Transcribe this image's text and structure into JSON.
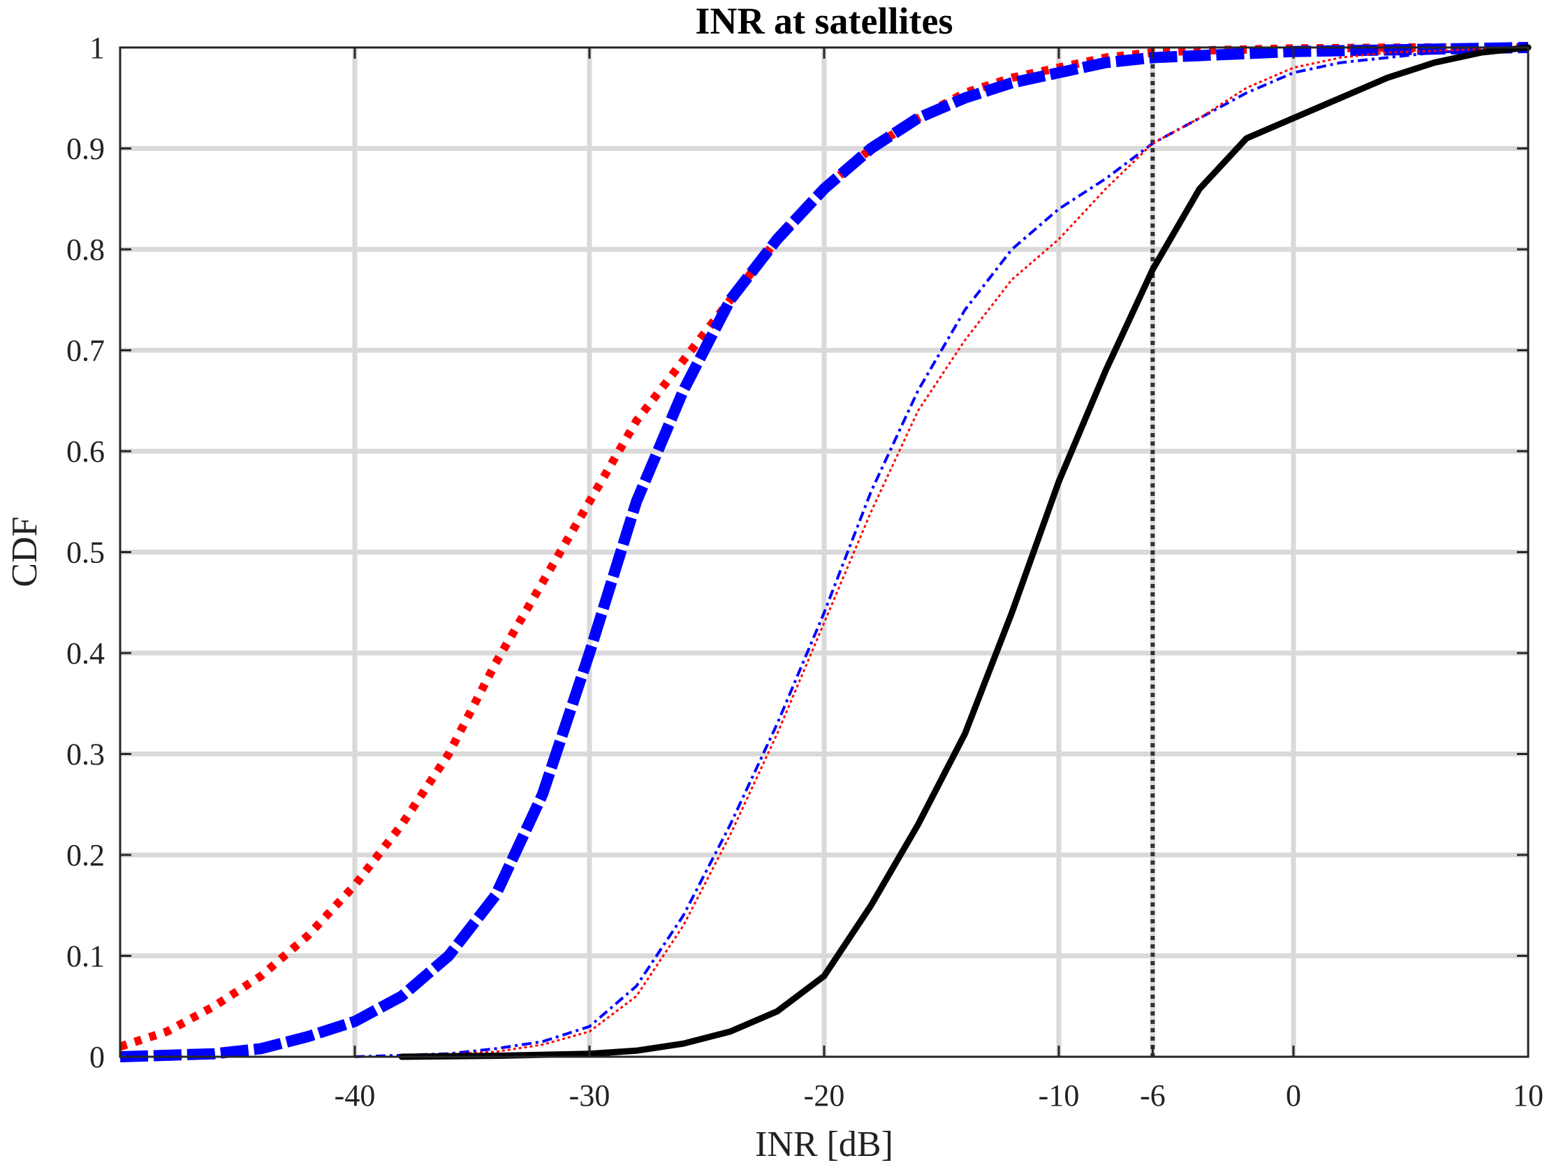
{
  "chart_data": {
    "type": "line",
    "title": "INR at satellites",
    "xlabel": "INR [dB]",
    "ylabel": "CDF",
    "xlim": [
      -50,
      10
    ],
    "ylim": [
      0,
      1
    ],
    "grid": true,
    "xticks": [
      -40,
      -30,
      -20,
      -10,
      -6,
      0,
      10
    ],
    "xtick_labels": [
      "-40",
      "-30",
      "-20",
      "-10",
      "-6",
      "0",
      "10"
    ],
    "yticks": [
      0,
      0.1,
      0.2,
      0.3,
      0.4,
      0.5,
      0.6,
      0.7,
      0.8,
      0.9,
      1
    ],
    "ytick_labels": [
      "0",
      "0.1",
      "0.2",
      "0.3",
      "0.4",
      "0.5",
      "0.6",
      "0.7",
      "0.8",
      "0.9",
      "1"
    ],
    "threshold": {
      "x": -6,
      "color": "#333333"
    },
    "series": [
      {
        "color": "#ff0000",
        "style": "dotted-thick",
        "x": [
          -50,
          -48,
          -46,
          -44,
          -42,
          -40,
          -38,
          -36,
          -34,
          -32,
          -30,
          -28,
          -26,
          -24,
          -22,
          -20,
          -18,
          -16,
          -14,
          -12,
          -10,
          -8,
          -6,
          -4,
          -2,
          0,
          5,
          10
        ],
        "y": [
          0.01,
          0.025,
          0.05,
          0.08,
          0.12,
          0.17,
          0.23,
          0.3,
          0.39,
          0.47,
          0.55,
          0.63,
          0.69,
          0.75,
          0.81,
          0.86,
          0.9,
          0.93,
          0.955,
          0.97,
          0.98,
          0.99,
          0.995,
          0.997,
          0.998,
          0.999,
          1.0,
          1.0
        ]
      },
      {
        "color": "#0000ff",
        "style": "dashed-thick",
        "x": [
          -50,
          -46,
          -44,
          -42,
          -40,
          -38,
          -36,
          -34,
          -32,
          -30,
          -28,
          -26,
          -24,
          -22,
          -20,
          -18,
          -16,
          -14,
          -12,
          -10,
          -8,
          -6,
          -4,
          -2,
          0,
          5,
          10
        ],
        "y": [
          0.0,
          0.003,
          0.008,
          0.02,
          0.035,
          0.06,
          0.1,
          0.16,
          0.26,
          0.4,
          0.55,
          0.66,
          0.75,
          0.81,
          0.86,
          0.9,
          0.93,
          0.95,
          0.965,
          0.975,
          0.985,
          0.99,
          0.992,
          0.994,
          0.996,
          0.998,
          1.0
        ]
      },
      {
        "color": "#0000ff",
        "style": "dashdot-thin",
        "x": [
          -40,
          -36,
          -34,
          -32,
          -30,
          -28,
          -26,
          -24,
          -22,
          -20,
          -18,
          -16,
          -14,
          -12,
          -10,
          -8,
          -6,
          -4,
          -2,
          0,
          2,
          4,
          6,
          10
        ],
        "y": [
          0.0,
          0.003,
          0.008,
          0.015,
          0.03,
          0.07,
          0.14,
          0.23,
          0.33,
          0.44,
          0.56,
          0.66,
          0.74,
          0.8,
          0.84,
          0.87,
          0.905,
          0.93,
          0.955,
          0.975,
          0.985,
          0.99,
          0.995,
          1.0
        ]
      },
      {
        "color": "#ff0000",
        "style": "dotted-thin",
        "x": [
          -38,
          -34,
          -32,
          -30,
          -28,
          -26,
          -24,
          -22,
          -20,
          -18,
          -16,
          -14,
          -12,
          -10,
          -8,
          -6,
          -4,
          -2,
          0,
          2,
          4,
          10
        ],
        "y": [
          0.0,
          0.005,
          0.012,
          0.025,
          0.06,
          0.13,
          0.22,
          0.32,
          0.43,
          0.54,
          0.64,
          0.71,
          0.77,
          0.81,
          0.86,
          0.905,
          0.93,
          0.96,
          0.98,
          0.99,
          0.995,
          1.0
        ]
      },
      {
        "color": "#000000",
        "style": "solid",
        "x": [
          -38,
          -34,
          -30,
          -28,
          -26,
          -24,
          -22,
          -20,
          -18,
          -16,
          -14,
          -12,
          -10,
          -8,
          -6,
          -4,
          -2,
          0,
          2,
          4,
          6,
          8,
          10
        ],
        "y": [
          0.0,
          0.001,
          0.003,
          0.006,
          0.013,
          0.025,
          0.045,
          0.08,
          0.15,
          0.23,
          0.32,
          0.44,
          0.57,
          0.68,
          0.78,
          0.86,
          0.91,
          0.93,
          0.95,
          0.97,
          0.985,
          0.995,
          1.0
        ]
      }
    ]
  }
}
